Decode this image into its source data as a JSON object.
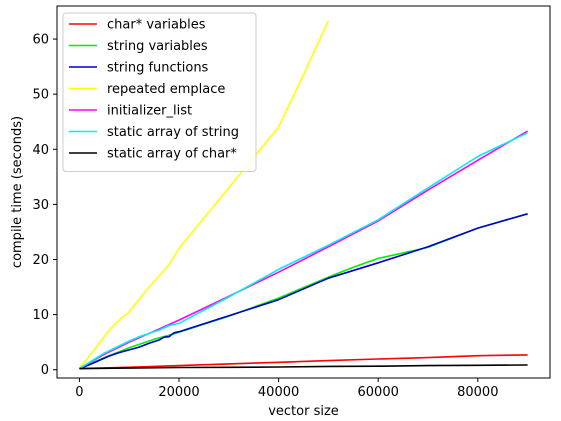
{
  "chart_data": {
    "type": "line",
    "xlabel": "vector size",
    "ylabel": "compile time (seconds)",
    "xlim": [
      -4500,
      94500
    ],
    "ylim": [
      -1.5,
      66
    ],
    "xticks": [
      0,
      20000,
      40000,
      60000,
      80000
    ],
    "yticks": [
      0,
      10,
      20,
      30,
      40,
      50,
      60
    ],
    "grid": false,
    "legend_position": "top-left",
    "series": [
      {
        "name": "char* variables",
        "color": "#ff0000",
        "x": [
          0,
          10000,
          20000,
          30000,
          40000,
          50000,
          60000,
          70000,
          80000,
          90000
        ],
        "y": [
          0.2,
          0.45,
          0.75,
          1.05,
          1.35,
          1.65,
          1.95,
          2.2,
          2.55,
          2.7
        ]
      },
      {
        "name": "string variables",
        "color": "#00ee00",
        "x": [
          0,
          5000,
          10000,
          15000,
          20000,
          30000,
          40000,
          50000,
          55000,
          60000,
          65000,
          70000,
          80000,
          90000
        ],
        "y": [
          0.2,
          2.2,
          4.0,
          5.5,
          6.8,
          9.7,
          13.0,
          16.8,
          18.6,
          20.2,
          21.2,
          22.2,
          25.7,
          28.3
        ]
      },
      {
        "name": "string functions",
        "color": "#0000cc",
        "x": [
          0,
          2000,
          4000,
          6000,
          8000,
          10000,
          12000,
          14000,
          16000,
          17000,
          18000,
          19000,
          20000,
          30000,
          40000,
          50000,
          60000,
          70000,
          80000,
          90000
        ],
        "y": [
          0.2,
          0.9,
          1.7,
          2.5,
          3.1,
          3.6,
          4.1,
          4.8,
          5.4,
          5.9,
          6.0,
          6.7,
          6.9,
          9.8,
          12.7,
          16.6,
          19.4,
          22.3,
          25.7,
          28.3
        ]
      },
      {
        "name": "repeated emplace",
        "color": "#ffff00",
        "x": [
          0,
          2000,
          4000,
          6000,
          8000,
          10000,
          12000,
          14000,
          16000,
          18000,
          20000,
          30000,
          40000,
          45000,
          50000
        ],
        "y": [
          0.2,
          2.5,
          4.8,
          7.2,
          9.0,
          10.5,
          12.8,
          15.0,
          17.0,
          19.0,
          22.0,
          33.0,
          44.0,
          53.5,
          63.3
        ]
      },
      {
        "name": "initializer_list",
        "color": "#ff00ff",
        "x": [
          0,
          5000,
          10000,
          15000,
          20000,
          30000,
          40000,
          50000,
          60000,
          70000,
          80000,
          90000
        ],
        "y": [
          0.2,
          2.8,
          5.0,
          7.0,
          9.0,
          13.3,
          17.7,
          22.3,
          27.0,
          32.6,
          38.0,
          43.3
        ]
      },
      {
        "name": "static array of string",
        "color": "#00eeee",
        "x": [
          0,
          5000,
          10000,
          12000,
          14000,
          16000,
          18000,
          20000,
          30000,
          40000,
          50000,
          60000,
          70000,
          80000,
          90000
        ],
        "y": [
          0.2,
          3.0,
          5.2,
          6.0,
          6.6,
          7.2,
          8.0,
          8.4,
          13.2,
          18.2,
          22.6,
          27.2,
          33.0,
          38.7,
          43.0
        ]
      },
      {
        "name": "static array of char*",
        "color": "#000000",
        "x": [
          0,
          10000,
          20000,
          30000,
          40000,
          50000,
          60000,
          70000,
          80000,
          90000
        ],
        "y": [
          0.2,
          0.3,
          0.4,
          0.45,
          0.5,
          0.6,
          0.65,
          0.75,
          0.8,
          0.85
        ]
      }
    ]
  }
}
